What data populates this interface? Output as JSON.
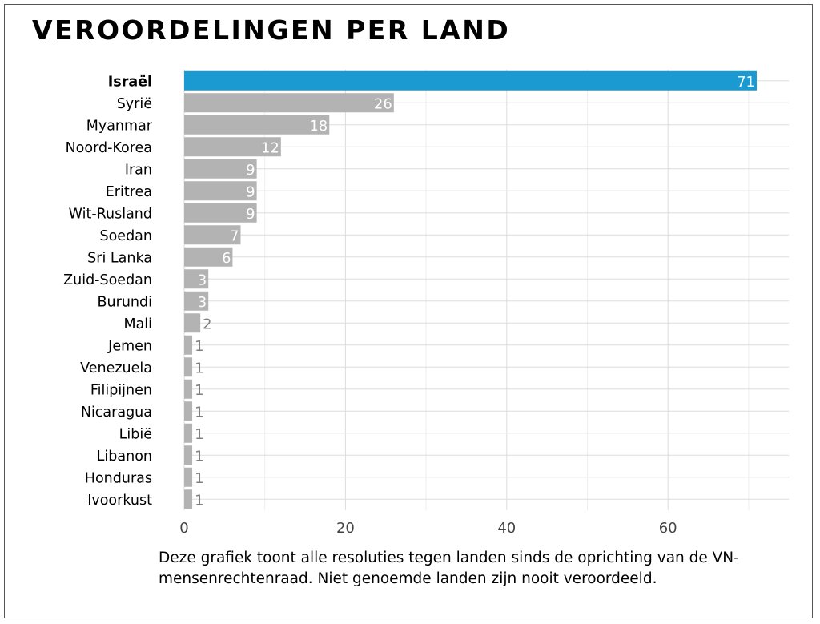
{
  "title": "VEROORDELINGEN PER LAND",
  "caption": "Deze grafiek toont alle resoluties tegen landen sinds de oprichting van de VN-mensenrechtenraad. Niet genoemde landen zijn nooit veroordeeld.",
  "colors": {
    "highlight": "#1b9ad2",
    "bar": "#b3b3b3",
    "grid": "#dddddd",
    "label_inside": "#ffffff",
    "label_outside": "#808080",
    "text": "#000000",
    "axis_text": "#444444"
  },
  "chart_data": {
    "type": "bar",
    "orientation": "horizontal",
    "categories": [
      "Israël",
      "Syrië",
      "Myanmar",
      "Noord-Korea",
      "Iran",
      "Eritrea",
      "Wit-Rusland",
      "Soedan",
      "Sri Lanka",
      "Zuid-Soedan",
      "Burundi",
      "Mali",
      "Jemen",
      "Venezuela",
      "Filipijnen",
      "Nicaragua",
      "Libië",
      "Libanon",
      "Honduras",
      "Ivoorkust"
    ],
    "values": [
      71,
      26,
      18,
      12,
      9,
      9,
      9,
      7,
      6,
      3,
      3,
      2,
      1,
      1,
      1,
      1,
      1,
      1,
      1,
      1
    ],
    "highlight": "Israël",
    "xlim": [
      0,
      75
    ],
    "xticks": [
      0,
      20,
      40,
      60
    ],
    "grid": true
  }
}
